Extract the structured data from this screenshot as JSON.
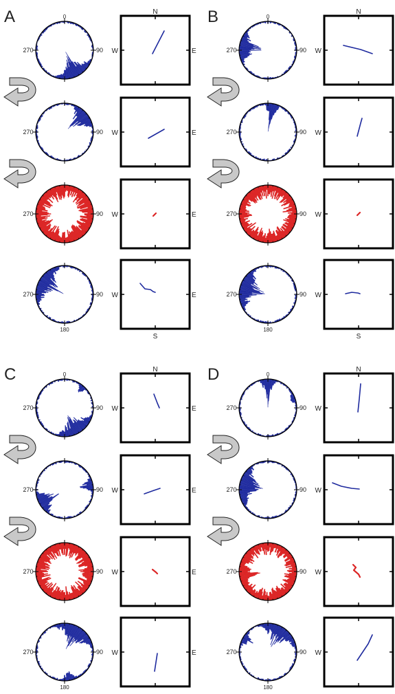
{
  "panels": [
    {
      "letter": "A",
      "rows": [
        {
          "color": "blue",
          "lobes": [
            [
              155,
              45,
              0.9
            ]
          ],
          "path": [
            [
              -4,
              5
            ],
            [
              13,
              -28
            ]
          ]
        },
        {
          "color": "blue",
          "lobes": [
            [
              50,
              32,
              0.85
            ]
          ],
          "path": [
            [
              -10,
              9
            ],
            [
              13,
              -4
            ]
          ]
        },
        {
          "color": "red",
          "lobes": [
            [
              0,
              360,
              0.45
            ]
          ],
          "path": [
            [
              -3,
              3
            ],
            [
              1,
              -1
            ]
          ]
        },
        {
          "color": "blue",
          "lobes": [
            [
              300,
              55,
              0.85
            ]
          ],
          "path": [
            [
              -22,
              -16
            ],
            [
              -15,
              -8
            ],
            [
              -7,
              -7
            ],
            [
              -3,
              -4
            ],
            [
              0,
              -3
            ]
          ]
        }
      ]
    },
    {
      "letter": "B",
      "rows": [
        {
          "color": "blue",
          "lobes": [
            [
              278,
              38,
              0.85
            ]
          ],
          "path": [
            [
              -22,
              -7
            ],
            [
              3,
              -1
            ],
            [
              20,
              5
            ]
          ]
        },
        {
          "color": "blue",
          "lobes": [
            [
              10,
              16,
              0.95
            ]
          ],
          "path": [
            [
              -2,
              6
            ],
            [
              3,
              -13
            ],
            [
              5,
              -20
            ]
          ]
        },
        {
          "color": "red",
          "lobes": [
            [
              0,
              360,
              0.4
            ],
            [
              325,
              6,
              0.85
            ]
          ],
          "path": [
            [
              -2,
              2
            ],
            [
              2,
              -2
            ]
          ]
        },
        {
          "color": "blue",
          "lobes": [
            [
              285,
              52,
              0.9
            ]
          ],
          "path": [
            [
              -19,
              -1
            ],
            [
              -10,
              -3
            ],
            [
              -1,
              -2
            ],
            [
              2,
              -1
            ]
          ]
        }
      ]
    },
    {
      "letter": "C",
      "rows": [
        {
          "color": "blue",
          "lobes": [
            [
              150,
              48,
              0.8
            ],
            [
              40,
              12,
              0.35
            ]
          ],
          "path": [
            [
              -2,
              -20
            ],
            [
              3,
              -7
            ],
            [
              6,
              0
            ]
          ]
        },
        {
          "color": "blue",
          "lobes": [
            [
              240,
              28,
              0.88
            ],
            [
              80,
              18,
              0.45
            ]
          ],
          "path": [
            [
              -16,
              6
            ],
            [
              -2,
              1
            ],
            [
              7,
              -2
            ]
          ]
        },
        {
          "color": "red",
          "lobes": [
            [
              0,
              360,
              0.42
            ]
          ],
          "path": [
            [
              -4,
              -3
            ],
            [
              1,
              1
            ],
            [
              3,
              3
            ]
          ]
        },
        {
          "color": "blue",
          "lobes": [
            [
              30,
              55,
              0.8
            ],
            [
              170,
              20,
              0.35
            ]
          ],
          "path": [
            [
              -1,
              28
            ],
            [
              1,
              15
            ],
            [
              3,
              2
            ]
          ]
        }
      ]
    },
    {
      "letter": "D",
      "rows": [
        {
          "color": "blue",
          "lobes": [
            [
              0,
              18,
              0.92
            ],
            [
              70,
              15,
              0.25
            ]
          ],
          "path": [
            [
              -1,
              6
            ],
            [
              1,
              -13
            ],
            [
              3,
              -35
            ]
          ]
        },
        {
          "color": "blue",
          "lobes": [
            [
              280,
              52,
              0.85
            ]
          ],
          "path": [
            [
              -38,
              -10
            ],
            [
              -25,
              -5
            ],
            [
              -10,
              -2
            ],
            [
              1,
              -1
            ]
          ]
        },
        {
          "color": "red",
          "lobes": [
            [
              0,
              360,
              0.35
            ],
            [
              260,
              16,
              0.8
            ]
          ],
          "path": [
            [
              -8,
              -10
            ],
            [
              -4,
              -6
            ],
            [
              -7,
              -2
            ],
            [
              0,
              4
            ],
            [
              2,
              8
            ]
          ]
        },
        {
          "color": "blue",
          "lobes": [
            [
              30,
              55,
              0.75
            ],
            [
              300,
              20,
              0.35
            ]
          ],
          "path": [
            [
              -2,
              12
            ],
            [
              6,
              0
            ],
            [
              14,
              -12
            ],
            [
              20,
              -25
            ]
          ]
        }
      ]
    }
  ],
  "labels": {
    "tick0": "0",
    "tick90": "90",
    "tick270": "270",
    "tick180": "180",
    "north": "N",
    "south": "S",
    "west": "W",
    "east": "E"
  },
  "colors": {
    "blue": "#1e2a9e",
    "red": "#dc2626",
    "arrow_fill": "#c8c8c8",
    "arrow_stroke": "#222222"
  }
}
